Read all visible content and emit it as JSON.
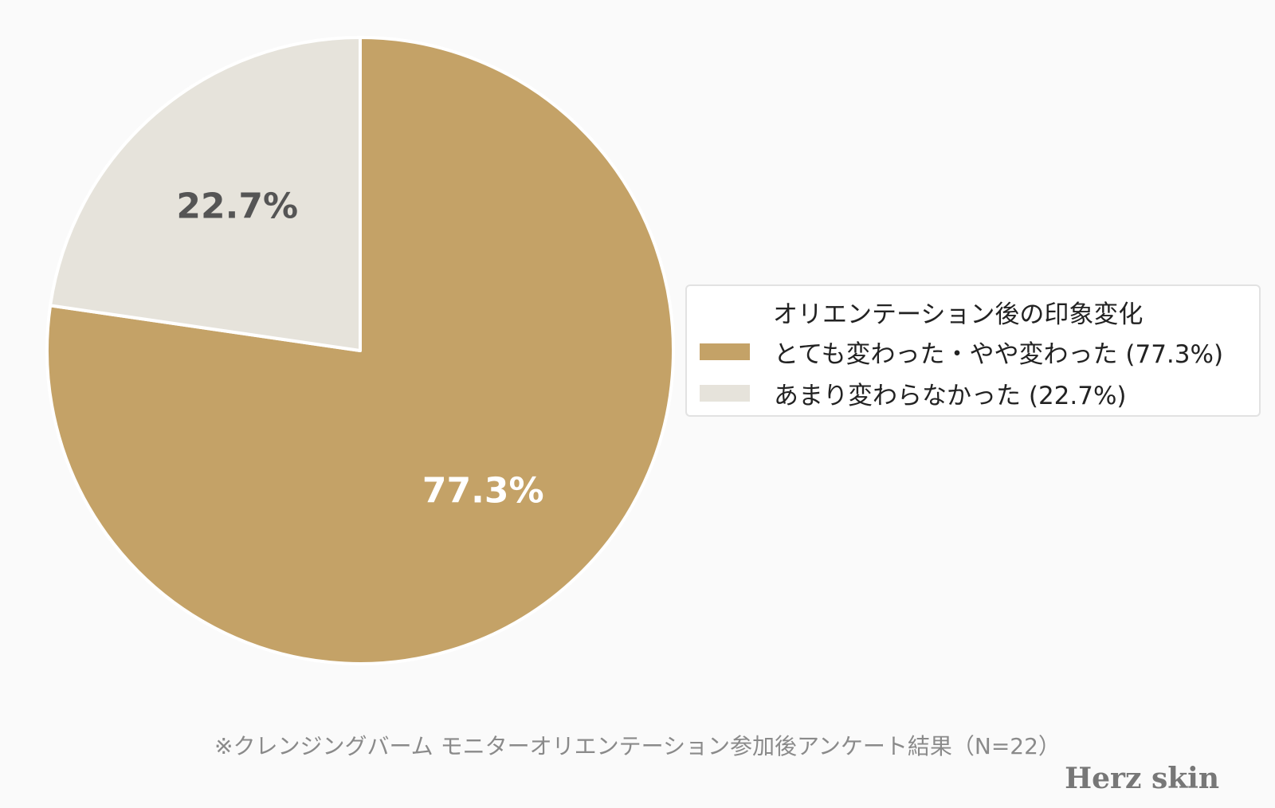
{
  "chart_data": {
    "type": "pie",
    "legend_title": "オリエンテーション後の印象変化",
    "legend_position": "right",
    "slices": [
      {
        "name": "とても変わった・やや変わった (77.3%)",
        "value": 77.3,
        "label": "77.3%",
        "color": "#c4a267",
        "label_color": "#ffffff"
      },
      {
        "name": "あまり変わらなかった (22.7%)",
        "value": 22.7,
        "label": "22.7%",
        "color": "#e6e3db",
        "label_color": "#555555"
      }
    ],
    "start_angle": "top",
    "direction": "clockwise"
  },
  "footnote": "※クレンジングバーム モニターオリエンテーション参加後アンケート結果（N=22）",
  "brand": "Herz skin"
}
